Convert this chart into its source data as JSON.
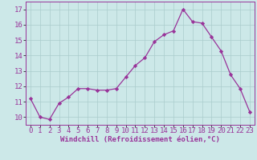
{
  "x": [
    0,
    1,
    2,
    3,
    4,
    5,
    6,
    7,
    8,
    9,
    10,
    11,
    12,
    13,
    14,
    15,
    16,
    17,
    18,
    19,
    20,
    21,
    22,
    23
  ],
  "y": [
    11.2,
    10.0,
    9.85,
    10.9,
    11.3,
    11.85,
    11.85,
    11.75,
    11.75,
    11.85,
    12.6,
    13.35,
    13.85,
    14.9,
    15.35,
    15.6,
    17.0,
    16.2,
    16.1,
    15.2,
    14.3,
    12.75,
    11.85,
    10.35
  ],
  "line_color": "#993399",
  "marker": "D",
  "marker_size": 2.2,
  "bg_color": "#cce8e8",
  "grid_color": "#aacccc",
  "xlabel": "Windchill (Refroidissement éolien,°C)",
  "xlim": [
    -0.5,
    23.5
  ],
  "ylim": [
    9.5,
    17.5
  ],
  "xticks": [
    0,
    1,
    2,
    3,
    4,
    5,
    6,
    7,
    8,
    9,
    10,
    11,
    12,
    13,
    14,
    15,
    16,
    17,
    18,
    19,
    20,
    21,
    22,
    23
  ],
  "yticks": [
    10,
    11,
    12,
    13,
    14,
    15,
    16,
    17
  ],
  "xlabel_fontsize": 6.5,
  "tick_fontsize": 6.5
}
